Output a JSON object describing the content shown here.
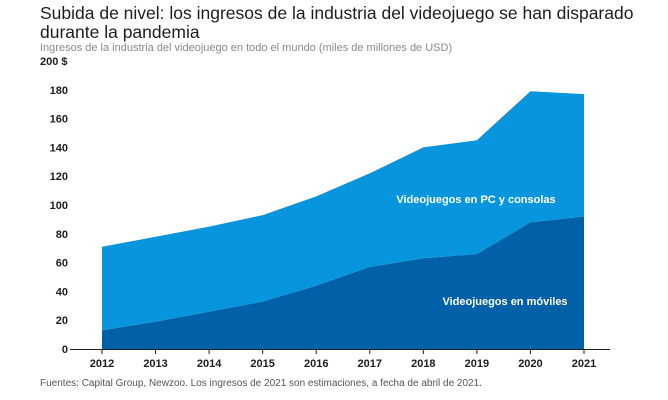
{
  "title": "Subida de nivel: los ingresos de la industria del videojuego se han disparado durante la pandemia",
  "subtitle": "Ingresos de la industria del videojuego en todo el mundo (miles de millones de USD)",
  "footer": "Fuentes: Capital Group, Newzoo. Los ingresos de 2021 son estimaciones, a fecha de abril de 2021.",
  "chart_data": {
    "type": "area",
    "stacked": true,
    "categories": [
      "2012",
      "2013",
      "2014",
      "2015",
      "2016",
      "2017",
      "2018",
      "2019",
      "2020",
      "2021"
    ],
    "ylim": [
      0,
      200
    ],
    "yticks": [
      0,
      20,
      40,
      60,
      80,
      100,
      120,
      140,
      160,
      180,
      200
    ],
    "ytick_labels": [
      "0",
      "20",
      "40",
      "60",
      "80",
      "100",
      "120",
      "140",
      "160",
      "180",
      "200 $"
    ],
    "series": [
      {
        "name": "Videojuegos en móviles",
        "color": "#0060a8",
        "values": [
          13,
          19,
          26,
          33,
          44,
          57,
          63,
          66,
          88,
          92
        ]
      },
      {
        "name": "Videojuegos en PC y consolas",
        "color": "#0796de",
        "values": [
          58,
          59,
          59,
          60,
          62,
          65,
          77,
          79,
          91,
          85
        ]
      }
    ],
    "series_labels": [
      "Videojuegos en PC y consolas",
      "Videojuegos en móviles"
    ],
    "xlabel": "",
    "ylabel": "",
    "grid": false
  }
}
